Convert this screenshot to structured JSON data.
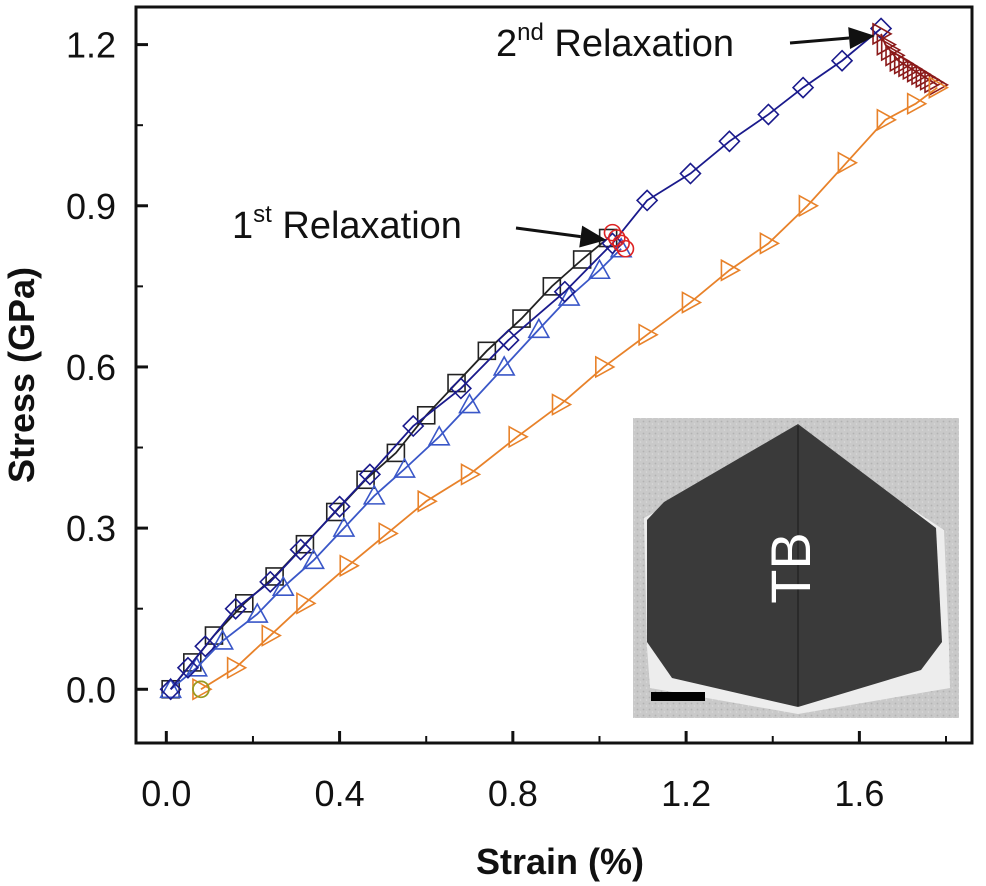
{
  "chart_data": {
    "type": "scatter",
    "xlabel": "Strain (%)",
    "ylabel": "Stress (GPa)",
    "xlim": [
      -0.07,
      1.86
    ],
    "ylim": [
      -0.1,
      1.27
    ],
    "x_ticks": [
      "0.0",
      "0.4",
      "0.8",
      "1.2",
      "1.6"
    ],
    "x_tick_values": [
      0.0,
      0.4,
      0.8,
      1.2,
      1.6
    ],
    "y_ticks": [
      "0.0",
      "0.3",
      "0.6",
      "0.9",
      "1.2"
    ],
    "y_tick_values": [
      0.0,
      0.3,
      0.6,
      0.9,
      1.2
    ],
    "grid": false,
    "series": [
      {
        "marker": "square",
        "color": "#222222",
        "line": true,
        "x": [
          0.01,
          0.06,
          0.11,
          0.18,
          0.25,
          0.32,
          0.39,
          0.46,
          0.53,
          0.6,
          0.67,
          0.74,
          0.82,
          0.89,
          0.96,
          1.02
        ],
        "y": [
          0.0,
          0.05,
          0.1,
          0.16,
          0.21,
          0.27,
          0.33,
          0.39,
          0.44,
          0.51,
          0.57,
          0.63,
          0.69,
          0.75,
          0.8,
          0.84
        ]
      },
      {
        "marker": "triangle-up",
        "color": "#3a57c8",
        "line": true,
        "x": [
          0.01,
          0.07,
          0.13,
          0.21,
          0.27,
          0.34,
          0.41,
          0.48,
          0.55,
          0.63,
          0.7,
          0.78,
          0.86,
          0.93,
          1.0,
          1.05
        ],
        "y": [
          0.0,
          0.04,
          0.09,
          0.14,
          0.19,
          0.24,
          0.3,
          0.36,
          0.41,
          0.47,
          0.53,
          0.6,
          0.67,
          0.73,
          0.78,
          0.82
        ]
      },
      {
        "marker": "diamond",
        "color": "#1a1a8c",
        "line": true,
        "x": [
          0.01,
          0.05,
          0.09,
          0.16,
          0.24,
          0.31,
          0.4,
          0.47,
          0.57,
          0.68,
          0.79,
          0.92,
          1.03,
          1.11,
          1.21,
          1.3,
          1.39,
          1.47,
          1.56,
          1.65
        ],
        "y": [
          0.0,
          0.04,
          0.08,
          0.15,
          0.2,
          0.26,
          0.34,
          0.4,
          0.49,
          0.56,
          0.65,
          0.74,
          0.83,
          0.91,
          0.96,
          1.02,
          1.07,
          1.12,
          1.17,
          1.23
        ]
      },
      {
        "marker": "circle",
        "color": "#dd2222",
        "line": false,
        "x": [
          1.03,
          1.04,
          1.05,
          1.06
        ],
        "y": [
          0.85,
          0.84,
          0.83,
          0.82
        ]
      },
      {
        "marker": "triangle-right",
        "color": "#8b1a1a",
        "line": true,
        "x": [
          1.65,
          1.66,
          1.67,
          1.68,
          1.69,
          1.7,
          1.71,
          1.72,
          1.73,
          1.74,
          1.75,
          1.76,
          1.77,
          1.78
        ],
        "y": [
          1.22,
          1.2,
          1.19,
          1.18,
          1.17,
          1.165,
          1.16,
          1.155,
          1.15,
          1.145,
          1.14,
          1.135,
          1.13,
          1.125
        ]
      },
      {
        "marker": "triangle-right",
        "color": "#e8822a",
        "line": true,
        "x": [
          0.08,
          0.16,
          0.24,
          0.32,
          0.42,
          0.51,
          0.6,
          0.7,
          0.81,
          0.91,
          1.01,
          1.11,
          1.21,
          1.3,
          1.39,
          1.48,
          1.57,
          1.66,
          1.73,
          1.78
        ],
        "y": [
          0.0,
          0.04,
          0.1,
          0.16,
          0.23,
          0.29,
          0.35,
          0.4,
          0.47,
          0.53,
          0.6,
          0.66,
          0.72,
          0.78,
          0.83,
          0.9,
          0.98,
          1.06,
          1.09,
          1.12
        ]
      },
      {
        "marker": "circle",
        "color": "#9a9a22",
        "line": false,
        "x": [
          0.08,
          0.08
        ],
        "y": [
          0.0,
          0.0
        ]
      }
    ],
    "annotations": [
      {
        "base": "1",
        "sup": "st",
        "text": " Relaxation",
        "target_x": 1.03,
        "target_y": 0.84
      },
      {
        "base": "2",
        "sup": "nd",
        "text": " Relaxation",
        "target_x": 1.65,
        "target_y": 1.22
      }
    ],
    "inset": {
      "label": "TB"
    }
  }
}
